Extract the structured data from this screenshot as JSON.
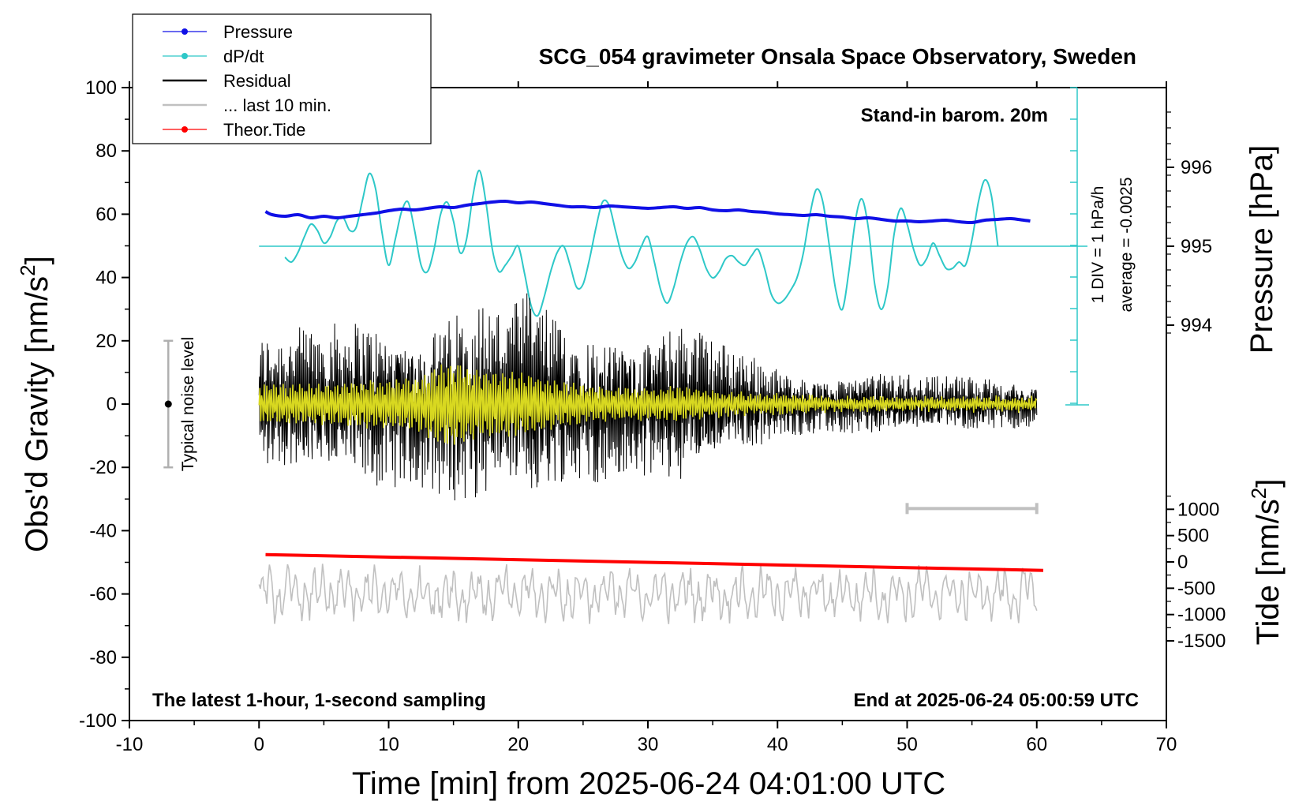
{
  "chart_data": {
    "type": "line",
    "title": "SCG_054 gravimeter Onsala Space Observatory, Sweden",
    "xlabel": "Time [min] from 2025-06-24 04:01:00 UTC",
    "ylabel_left_main": "Obs'd Gravity [nm/s",
    "ylabel_left_sup": "2",
    "ylabel_left_end": "]",
    "ylabel_right_pressure": "Pressure [hPa]",
    "ylabel_right_tide_main": "Tide [nm/s",
    "ylabel_right_tide_sup": "2",
    "ylabel_right_tide_end": "]",
    "xlim": [
      -10,
      70
    ],
    "ylim": [
      -100,
      100
    ],
    "x_ticks": [
      "-10",
      "0",
      "10",
      "20",
      "30",
      "40",
      "50",
      "60",
      "70"
    ],
    "y_ticks": [
      "-100",
      "-80",
      "-60",
      "-40",
      "-20",
      "0",
      "20",
      "40",
      "60",
      "80",
      "100"
    ],
    "pressure_axis": {
      "ticks": [
        "994",
        "995",
        "996"
      ],
      "values": [
        994,
        995,
        996
      ]
    },
    "tide_axis": {
      "ticks": [
        "-1500",
        "-1000",
        "-500",
        "0",
        "500",
        "1000"
      ],
      "values": [
        -1500,
        -1000,
        -500,
        0,
        500,
        1000
      ]
    },
    "annotations": {
      "barometer": "Stand-in barom. 20m",
      "dpdt_scale": "1 DIV = 1 hPa/h",
      "dpdt_average": "average = -0.0025",
      "noise": "Typical noise level",
      "bottom_left": "The latest 1-hour, 1-second sampling",
      "bottom_right": "End at 2025-06-24 05:00:59 UTC"
    },
    "legend": {
      "placement": "top-left",
      "entries": [
        {
          "label": "Pressure",
          "color": "#1010e6"
        },
        {
          "label": "dP/dt",
          "color": "#2ec8c8"
        },
        {
          "label": "Residual",
          "color": "#000000"
        },
        {
          "label": "... last 10 min.",
          "color": "#c0c0c0"
        },
        {
          "label": "Theor.Tide",
          "color": "#ff0000"
        }
      ]
    },
    "colors": {
      "pressure": "#1010e6",
      "dpdt": "#2ec8c8",
      "residual": "#000000",
      "residual_smooth": "#d8d820",
      "last10": "#c0c0c0",
      "tide": "#ff0000"
    },
    "series": [
      {
        "name": "Pressure",
        "unit": "hPa",
        "x": [
          0.5,
          1,
          2,
          3,
          4,
          5,
          6,
          7,
          8,
          9,
          10,
          11,
          12,
          13,
          14,
          15,
          16,
          17,
          18,
          19,
          20,
          21,
          22,
          23,
          24,
          25,
          26,
          27,
          28,
          29,
          30,
          31,
          32,
          33,
          34,
          35,
          36,
          37,
          38,
          39,
          40,
          41,
          42,
          43,
          44,
          45,
          46,
          47,
          48,
          49,
          50,
          51,
          52,
          53,
          54,
          55,
          56,
          57,
          58,
          59,
          59.5
        ],
        "y": [
          995.44,
          995.4,
          995.38,
          995.4,
          995.36,
          995.38,
          995.36,
          995.38,
          995.4,
          995.42,
          995.45,
          995.47,
          995.46,
          995.48,
          995.5,
          995.49,
          995.52,
          995.54,
          995.56,
          995.57,
          995.55,
          995.56,
          995.54,
          995.52,
          995.5,
          995.5,
          995.49,
          995.51,
          995.5,
          995.49,
          995.48,
          995.49,
          995.5,
          995.48,
          995.49,
          995.46,
          995.45,
          995.46,
          995.44,
          995.43,
          995.41,
          995.4,
          995.39,
          995.4,
          995.38,
          995.37,
          995.35,
          995.36,
          995.34,
          995.32,
          995.32,
          995.31,
          995.32,
          995.33,
          995.31,
          995.3,
          995.33,
          995.34,
          995.35,
          995.33,
          995.32
        ]
      },
      {
        "name": "dP/dt",
        "unit": "hPa/h",
        "average": -0.0025,
        "x": [
          2.0,
          2.5,
          3.0,
          3.5,
          4.0,
          4.5,
          5.0,
          5.5,
          6.0,
          6.5,
          7.0,
          7.5,
          8.0,
          8.5,
          9.0,
          9.5,
          10.0,
          10.5,
          11.0,
          11.5,
          12.0,
          12.5,
          13.0,
          13.5,
          14.0,
          14.5,
          15.0,
          15.5,
          16.0,
          16.5,
          17.0,
          17.5,
          18.0,
          18.5,
          19.0,
          19.5,
          20.0,
          20.5,
          21.0,
          21.5,
          22.0,
          22.5,
          23.0,
          23.5,
          24.0,
          24.5,
          25.0,
          25.5,
          26.0,
          26.5,
          27.0,
          27.5,
          28.0,
          28.5,
          29.0,
          29.5,
          30.0,
          30.5,
          31.0,
          31.5,
          32.0,
          32.5,
          33.0,
          33.5,
          34.0,
          34.5,
          35.0,
          35.5,
          36.0,
          36.5,
          37.0,
          37.5,
          38.0,
          38.5,
          39.0,
          39.5,
          40.0,
          40.5,
          41.0,
          41.5,
          42.0,
          42.5,
          43.0,
          43.5,
          44.0,
          44.5,
          45.0,
          45.5,
          46.0,
          46.5,
          47.0,
          47.5,
          48.0,
          48.5,
          49.0,
          49.5,
          50.0,
          50.5,
          51.0,
          51.5,
          52.0,
          52.5,
          53.0,
          53.5,
          54.0,
          54.5,
          55.0,
          55.5,
          56.0,
          56.5,
          57.0
        ],
        "y": [
          -0.35,
          -0.5,
          -0.2,
          0.3,
          0.7,
          0.5,
          0.1,
          0.3,
          0.8,
          0.9,
          0.5,
          0.6,
          1.5,
          2.3,
          1.8,
          0.4,
          -0.6,
          0.2,
          1.1,
          1.4,
          0.5,
          -0.6,
          -0.8,
          -0.1,
          1.0,
          1.4,
          0.8,
          -0.2,
          0.2,
          1.6,
          2.4,
          1.4,
          -0.1,
          -0.8,
          -0.6,
          -0.3,
          0.0,
          -0.9,
          -1.9,
          -2.2,
          -1.6,
          -0.8,
          -0.2,
          0.0,
          -0.6,
          -1.3,
          -1.2,
          -0.4,
          0.6,
          1.4,
          1.3,
          0.5,
          -0.3,
          -0.7,
          -0.5,
          0.0,
          0.3,
          -0.5,
          -1.4,
          -1.8,
          -1.3,
          -0.5,
          0.1,
          0.3,
          -0.1,
          -0.7,
          -1.0,
          -0.8,
          -0.4,
          -0.3,
          -0.5,
          -0.6,
          -0.3,
          -0.1,
          -0.7,
          -1.5,
          -1.8,
          -1.7,
          -1.4,
          -1.0,
          -0.2,
          1.0,
          1.8,
          1.4,
          0.0,
          -1.4,
          -2.0,
          -0.8,
          0.8,
          1.5,
          0.6,
          -1.2,
          -2.0,
          -1.3,
          0.4,
          1.2,
          0.7,
          -0.1,
          -0.6,
          -0.4,
          0.1,
          -0.3,
          -0.7,
          -0.7,
          -0.5,
          -0.6,
          0.2,
          1.4,
          2.1,
          1.6,
          0.0
        ]
      },
      {
        "name": "Residual",
        "unit": "nm/s2",
        "x_range": [
          0,
          60
        ],
        "amplitude_envelope": {
          "x": [
            0,
            5,
            8,
            12,
            15,
            17,
            19,
            21,
            23,
            26,
            28,
            30,
            33,
            35,
            38,
            41,
            44,
            48,
            52,
            56,
            60
          ],
          "y": [
            20,
            22,
            25,
            22,
            28,
            30,
            26,
            32,
            24,
            22,
            22,
            20,
            24,
            18,
            14,
            9,
            8,
            9,
            8,
            8,
            6
          ]
        },
        "smoothed_envelope": {
          "x": [
            0,
            5,
            8,
            12,
            14,
            15,
            17,
            19,
            21,
            23,
            26,
            28,
            30,
            33,
            35,
            38,
            41,
            44,
            48,
            52,
            56,
            60
          ],
          "y": [
            6,
            6,
            7,
            8,
            12,
            13,
            10,
            10,
            9,
            7,
            5,
            5,
            5,
            5,
            4,
            3,
            3,
            2,
            2,
            2,
            2,
            2
          ]
        }
      },
      {
        "name": "... last 10 min.",
        "unit": "nm/s2",
        "x_range": [
          0,
          60
        ],
        "offset": -60,
        "amplitude": 8,
        "scale_bar_x": [
          50,
          60
        ],
        "scale_bar_y": -33
      },
      {
        "name": "Theor.Tide",
        "unit": "nm/s2",
        "x": [
          0.5,
          60.5
        ],
        "y": [
          140,
          -160
        ]
      }
    ],
    "noise_bar": {
      "x": -7,
      "y_min": -20,
      "y_max": 20
    }
  }
}
